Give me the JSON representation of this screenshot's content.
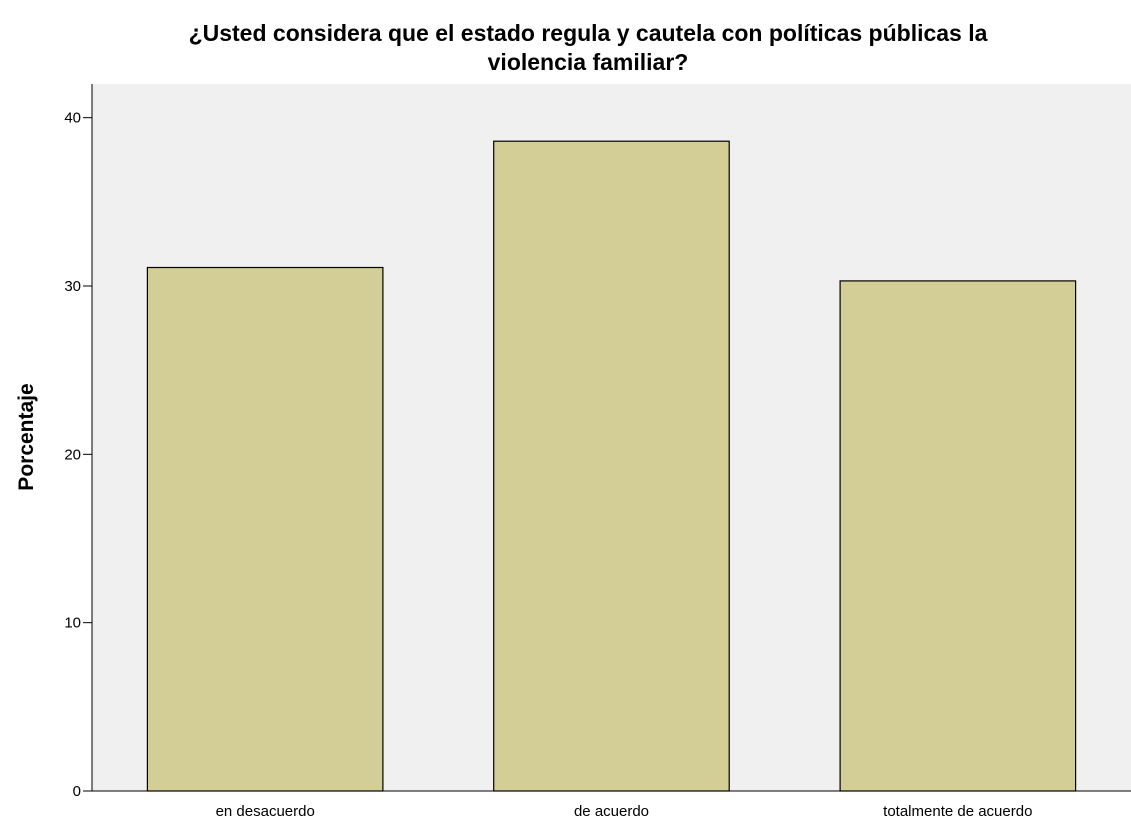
{
  "chart_data": {
    "type": "bar",
    "title_lines": [
      "¿Usted considera que el estado regula y cautela con políticas públicas la",
      "violencia familiar?"
    ],
    "ylabel": "Porcentaje",
    "xlabel": "",
    "categories": [
      "en desacuerdo",
      "de acuerdo",
      "totalmente de acuerdo"
    ],
    "values": [
      31.1,
      38.6,
      30.3
    ],
    "ylim": [
      0,
      42
    ],
    "yticks": [
      0,
      10,
      20,
      30,
      40
    ],
    "grid": false,
    "colors": {
      "bar_fill": "#d3cd96",
      "bar_stroke": "#000000",
      "plot_bg": "#f0f0f0"
    }
  }
}
